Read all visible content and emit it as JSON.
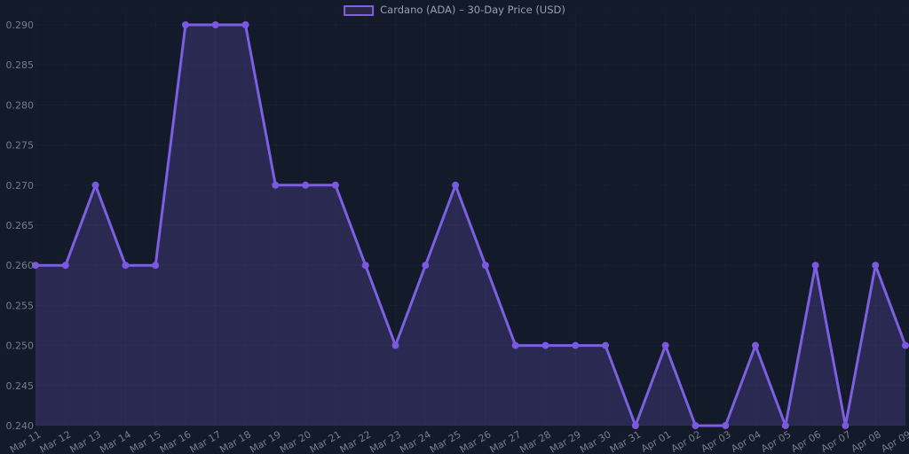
{
  "page": {
    "background": "#131a29"
  },
  "legend": {
    "label": "Cardano (ADA) – 30-Day Price (USD)",
    "text_color": "#9aa0ad",
    "swatch_border": "#7d5fe1",
    "swatch_fill": "#2a2646"
  },
  "chart_data": {
    "type": "line",
    "title": "Cardano (ADA) – 30-Day Price (USD)",
    "series_label": "Cardano (ADA) – 30-Day Price (USD)",
    "categories": [
      "Mar 11",
      "Mar 12",
      "Mar 13",
      "Mar 14",
      "Mar 15",
      "Mar 16",
      "Mar 17",
      "Mar 18",
      "Mar 19",
      "Mar 20",
      "Mar 21",
      "Mar 22",
      "Mar 23",
      "Mar 24",
      "Mar 25",
      "Mar 26",
      "Mar 27",
      "Mar 28",
      "Mar 29",
      "Mar 30",
      "Mar 31",
      "Apr 01",
      "Apr 02",
      "Apr 03",
      "Apr 04",
      "Apr 05",
      "Apr 06",
      "Apr 07",
      "Apr 08",
      "Apr 09"
    ],
    "values": [
      0.26,
      0.26,
      0.27,
      0.26,
      0.26,
      0.29,
      0.29,
      0.29,
      0.27,
      0.27,
      0.27,
      0.26,
      0.25,
      0.26,
      0.27,
      0.26,
      0.25,
      0.25,
      0.25,
      0.25,
      0.24,
      0.25,
      0.24,
      0.24,
      0.25,
      0.24,
      0.26,
      0.24,
      0.26,
      0.25
    ],
    "y_ticks": [
      "0.240",
      "0.245",
      "0.250",
      "0.255",
      "0.260",
      "0.265",
      "0.270",
      "0.275",
      "0.280",
      "0.285",
      "0.290"
    ],
    "ylim": [
      0.24,
      0.29
    ],
    "xlabel": "",
    "ylabel": "",
    "grid": true,
    "legend_position": "top-center",
    "colors": {
      "line": "#7d5fe1",
      "point": "#7b58e0",
      "area_fill": "rgba(125,95,225,0.22)",
      "grid": "rgba(160,172,214,0.045)",
      "tick_text": "#767d8d"
    },
    "x_label_rotation_deg": -30
  }
}
